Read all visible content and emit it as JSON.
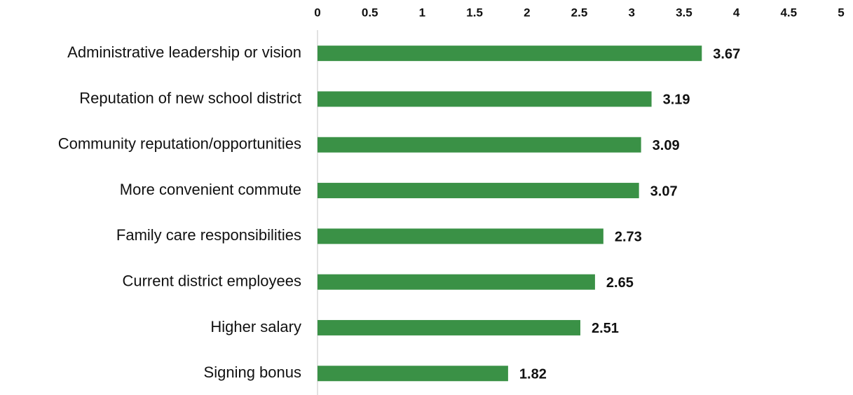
{
  "chart_data": {
    "type": "hbar",
    "categories": [
      "Administrative leadership or vision",
      "Reputation of new school district",
      "Community reputation/opportunities",
      "More convenient commute",
      "Family care responsibilities",
      "Current district employees",
      "Higher salary",
      "Signing bonus"
    ],
    "values": [
      3.67,
      3.19,
      3.09,
      3.07,
      2.73,
      2.65,
      2.51,
      1.82
    ],
    "color": "#3a9146",
    "xlim": [
      0,
      5
    ],
    "xticks": [
      0,
      0.5,
      1,
      1.5,
      2,
      2.5,
      3,
      3.5,
      4,
      4.5,
      5
    ],
    "grid": false,
    "show_value_labels": true
  }
}
